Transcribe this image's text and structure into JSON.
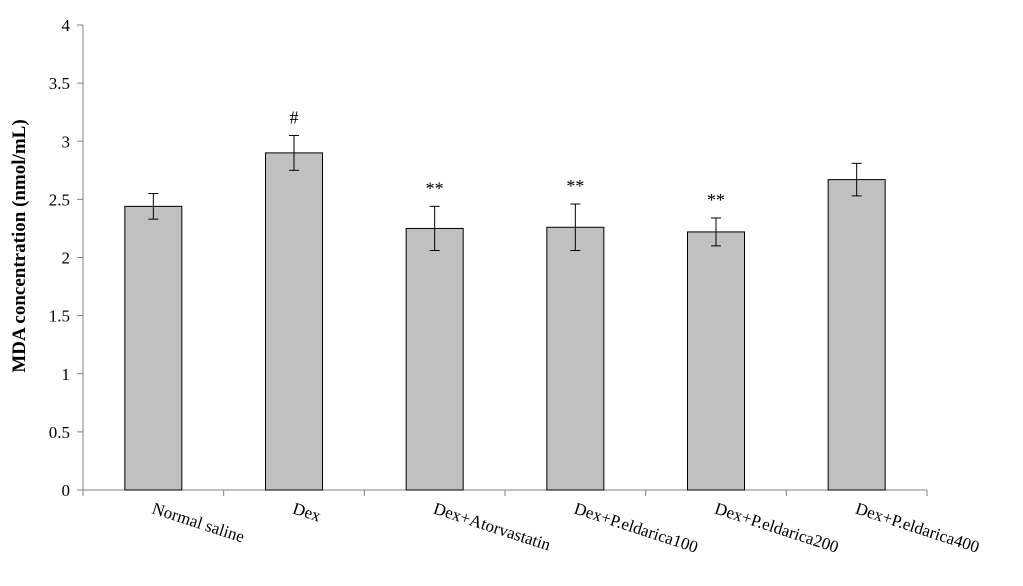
{
  "chart_data": {
    "type": "bar",
    "title": "",
    "xlabel": "",
    "ylabel": "MDA concentration (nmol/mL)",
    "ylim": [
      0,
      4
    ],
    "yticks": [
      "0",
      "0.5",
      "1",
      "1.5",
      "2",
      "2.5",
      "3",
      "3.5",
      "4"
    ],
    "grid": false,
    "categories": [
      "Normal saline",
      "Dex",
      "Dex+Atorvastatin",
      "Dex+P.eldarica100",
      "Dex+P.eldarica200",
      "Dex+P.eldarica400"
    ],
    "values": [
      2.44,
      2.9,
      2.25,
      2.26,
      2.22,
      2.67
    ],
    "errors": [
      0.11,
      0.15,
      0.19,
      0.2,
      0.12,
      0.14
    ],
    "annotations": [
      "",
      "#",
      "**",
      "**",
      "**",
      ""
    ],
    "bar_color": "#c0c0c0",
    "bar_edge_color": "#000000"
  }
}
